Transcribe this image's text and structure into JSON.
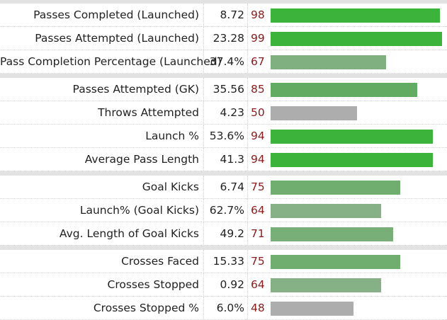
{
  "chart_data": {
    "type": "bar",
    "xlim": [
      0,
      100
    ],
    "groups": [
      {
        "rows": [
          {
            "label": "Passes Completed (Launched)",
            "value": "8.72",
            "percentile": 98,
            "color": "#3cb43c"
          },
          {
            "label": "Passes Attempted (Launched)",
            "value": "23.28",
            "percentile": 99,
            "color": "#3cb43c"
          },
          {
            "label": "Pass Completion Percentage (Launched)",
            "value": "37.4%",
            "percentile": 67,
            "color": "#80b080"
          }
        ]
      },
      {
        "rows": [
          {
            "label": "Passes Attempted (GK)",
            "value": "35.56",
            "percentile": 85,
            "color": "#62ab62"
          },
          {
            "label": "Throws Attempted",
            "value": "4.23",
            "percentile": 50,
            "color": "#adadad"
          },
          {
            "label": "Launch %",
            "value": "53.6%",
            "percentile": 94,
            "color": "#3cb43c"
          },
          {
            "label": "Average Pass Length",
            "value": "41.3",
            "percentile": 94,
            "color": "#3cb43c"
          }
        ]
      },
      {
        "rows": [
          {
            "label": "Goal Kicks",
            "value": "6.74",
            "percentile": 75,
            "color": "#6fae6f"
          },
          {
            "label": "Launch% (Goal Kicks)",
            "value": "62.7%",
            "percentile": 64,
            "color": "#86b186"
          },
          {
            "label": "Avg. Length of Goal Kicks",
            "value": "49.2",
            "percentile": 71,
            "color": "#78af78"
          }
        ]
      },
      {
        "rows": [
          {
            "label": "Crosses Faced",
            "value": "15.33",
            "percentile": 75,
            "color": "#6fae6f"
          },
          {
            "label": "Crosses Stopped",
            "value": "0.92",
            "percentile": 64,
            "color": "#86b186"
          },
          {
            "label": "Crosses Stopped %",
            "value": "6.0%",
            "percentile": 48,
            "color": "#adadad"
          }
        ]
      }
    ]
  }
}
